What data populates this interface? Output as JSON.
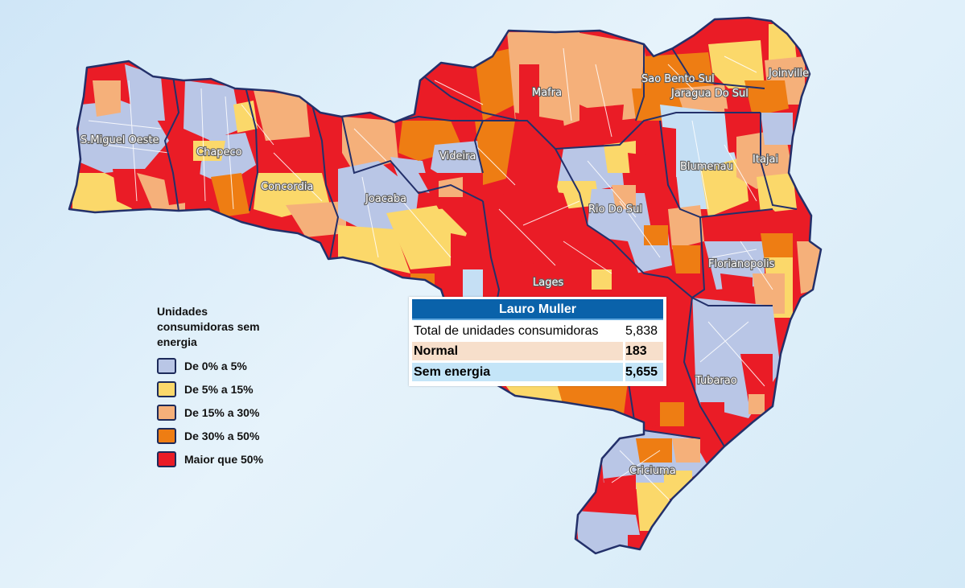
{
  "colors": {
    "cat_0_5": "#b9c6e6",
    "cat_5_15": "#fbd86a",
    "cat_15_30": "#f5b07a",
    "cat_30_50": "#ee7d13",
    "cat_50_plus": "#ea1c26",
    "border": "#23306a",
    "inner_line": "#ffffff"
  },
  "regions": [
    {
      "name": "S.Miguel Oeste"
    },
    {
      "name": "Chapeco"
    },
    {
      "name": "Concordia"
    },
    {
      "name": "Joacaba"
    },
    {
      "name": "Videira"
    },
    {
      "name": "Mafra"
    },
    {
      "name": "Sao Bento Sul"
    },
    {
      "name": "Jaragua Do Sul"
    },
    {
      "name": "Joinville"
    },
    {
      "name": "Blumenau"
    },
    {
      "name": "Itajai"
    },
    {
      "name": "Rio Do Sul"
    },
    {
      "name": "Florianopolis"
    },
    {
      "name": "Lages"
    },
    {
      "name": "Tubarao"
    },
    {
      "name": "Criciuma"
    }
  ],
  "legend": {
    "title": "Unidades consumidoras sem energia",
    "items": [
      {
        "label": "De 0% a 5%",
        "color": "#b9c6e6"
      },
      {
        "label": "De 5% a 15%",
        "color": "#fbd86a"
      },
      {
        "label": "De 15% a 30%",
        "color": "#f5b07a"
      },
      {
        "label": "De 30% a 50%",
        "color": "#ee7d13"
      },
      {
        "label": "Maior que 50%",
        "color": "#ea1c26"
      }
    ]
  },
  "tooltip": {
    "title": "Lauro Muller",
    "total_label": "Total de unidades consumidoras",
    "total_value": "5,838",
    "normal_label": "Normal",
    "normal_value": "183",
    "sem_label": "Sem energia",
    "sem_value": "5,655"
  }
}
